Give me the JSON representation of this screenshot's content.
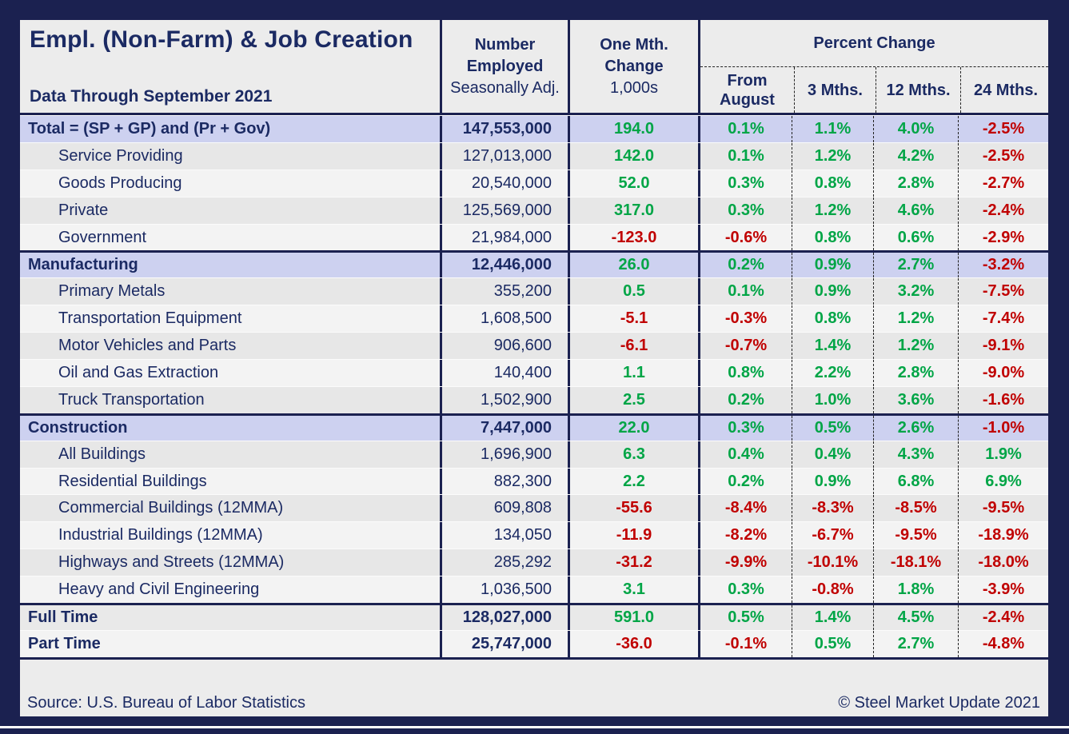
{
  "header": {
    "title": "Empl. (Non-Farm) & Job Creation",
    "subtitle": "Data Through September 2021",
    "employed_col": {
      "line1": "Number",
      "line2": "Employed",
      "line3": "Seasonally Adj."
    },
    "change_col": {
      "line1": "One Mth.",
      "line2": "Change",
      "line3": "1,000s"
    },
    "percent_change_label": "Percent Change",
    "percent_sub_columns": [
      "From August",
      "3 Mths.",
      "12 Mths.",
      "24 Mths."
    ]
  },
  "chart_data": {
    "type": "table",
    "title": "Empl. (Non-Farm) & Job Creation",
    "subtitle": "Data Through September 2021",
    "columns": [
      "Category",
      "Number Employed (Seasonally Adj.)",
      "One Mth. Change (1,000s)",
      "Percent Change From August",
      "Percent Change 3 Mths.",
      "Percent Change 12 Mths.",
      "Percent Change 24 Mths."
    ],
    "rows": [
      {
        "label": "Total = (SP + GP) and (Pr + Gov)",
        "employed": "147,553,000",
        "one_month_change": "194.0",
        "pct_from_august": "0.1%",
        "pct_3_months": "1.1%",
        "pct_12_months": "4.0%",
        "pct_24_months": "-2.5%",
        "type": "section",
        "shade": "",
        "rule_top": false
      },
      {
        "label": "Service Providing",
        "employed": "127,013,000",
        "one_month_change": "142.0",
        "pct_from_august": "0.1%",
        "pct_3_months": "1.2%",
        "pct_12_months": "4.2%",
        "pct_24_months": "-2.5%",
        "type": "sub",
        "shade": "dark",
        "rule_top": false
      },
      {
        "label": "Goods Producing",
        "employed": "20,540,000",
        "one_month_change": "52.0",
        "pct_from_august": "0.3%",
        "pct_3_months": "0.8%",
        "pct_12_months": "2.8%",
        "pct_24_months": "-2.7%",
        "type": "sub",
        "shade": "light",
        "rule_top": false
      },
      {
        "label": "Private",
        "employed": "125,569,000",
        "one_month_change": "317.0",
        "pct_from_august": "0.3%",
        "pct_3_months": "1.2%",
        "pct_12_months": "4.6%",
        "pct_24_months": "-2.4%",
        "type": "sub",
        "shade": "dark",
        "rule_top": false
      },
      {
        "label": "Government",
        "employed": "21,984,000",
        "one_month_change": "-123.0",
        "pct_from_august": "-0.6%",
        "pct_3_months": "0.8%",
        "pct_12_months": "0.6%",
        "pct_24_months": "-2.9%",
        "type": "sub",
        "shade": "light",
        "rule_top": false
      },
      {
        "label": "Manufacturing",
        "employed": "12,446,000",
        "one_month_change": "26.0",
        "pct_from_august": "0.2%",
        "pct_3_months": "0.9%",
        "pct_12_months": "2.7%",
        "pct_24_months": "-3.2%",
        "type": "section",
        "shade": "",
        "rule_top": true
      },
      {
        "label": "Primary Metals",
        "employed": "355,200",
        "one_month_change": "0.5",
        "pct_from_august": "0.1%",
        "pct_3_months": "0.9%",
        "pct_12_months": "3.2%",
        "pct_24_months": "-7.5%",
        "type": "sub",
        "shade": "dark",
        "rule_top": false
      },
      {
        "label": "Transportation Equipment",
        "employed": "1,608,500",
        "one_month_change": "-5.1",
        "pct_from_august": "-0.3%",
        "pct_3_months": "0.8%",
        "pct_12_months": "1.2%",
        "pct_24_months": "-7.4%",
        "type": "sub",
        "shade": "light",
        "rule_top": false
      },
      {
        "label": "Motor Vehicles and Parts",
        "employed": "906,600",
        "one_month_change": "-6.1",
        "pct_from_august": "-0.7%",
        "pct_3_months": "1.4%",
        "pct_12_months": "1.2%",
        "pct_24_months": "-9.1%",
        "type": "sub",
        "shade": "dark",
        "rule_top": false
      },
      {
        "label": "Oil and Gas Extraction",
        "employed": "140,400",
        "one_month_change": "1.1",
        "pct_from_august": "0.8%",
        "pct_3_months": "2.2%",
        "pct_12_months": "2.8%",
        "pct_24_months": "-9.0%",
        "type": "sub",
        "shade": "light",
        "rule_top": false
      },
      {
        "label": "Truck Transportation",
        "employed": "1,502,900",
        "one_month_change": "2.5",
        "pct_from_august": "0.2%",
        "pct_3_months": "1.0%",
        "pct_12_months": "3.6%",
        "pct_24_months": "-1.6%",
        "type": "sub",
        "shade": "dark",
        "rule_top": false
      },
      {
        "label": "Construction",
        "employed": "7,447,000",
        "one_month_change": "22.0",
        "pct_from_august": "0.3%",
        "pct_3_months": "0.5%",
        "pct_12_months": "2.6%",
        "pct_24_months": "-1.0%",
        "type": "section",
        "shade": "",
        "rule_top": true
      },
      {
        "label": "All Buildings",
        "employed": "1,696,900",
        "one_month_change": "6.3",
        "pct_from_august": "0.4%",
        "pct_3_months": "0.4%",
        "pct_12_months": "4.3%",
        "pct_24_months": "1.9%",
        "type": "sub",
        "shade": "dark",
        "rule_top": false
      },
      {
        "label": "Residential Buildings",
        "employed": "882,300",
        "one_month_change": "2.2",
        "pct_from_august": "0.2%",
        "pct_3_months": "0.9%",
        "pct_12_months": "6.8%",
        "pct_24_months": "6.9%",
        "type": "sub",
        "shade": "light",
        "rule_top": false
      },
      {
        "label": "Commercial Buildings (12MMA)",
        "employed": "609,808",
        "one_month_change": "-55.6",
        "pct_from_august": "-8.4%",
        "pct_3_months": "-8.3%",
        "pct_12_months": "-8.5%",
        "pct_24_months": "-9.5%",
        "type": "sub",
        "shade": "dark",
        "rule_top": false
      },
      {
        "label": "Industrial Buildings (12MMA)",
        "employed": "134,050",
        "one_month_change": "-11.9",
        "pct_from_august": "-8.2%",
        "pct_3_months": "-6.7%",
        "pct_12_months": "-9.5%",
        "pct_24_months": "-18.9%",
        "type": "sub",
        "shade": "light",
        "rule_top": false
      },
      {
        "label": "Highways and Streets (12MMA)",
        "employed": "285,292",
        "one_month_change": "-31.2",
        "pct_from_august": "-9.9%",
        "pct_3_months": "-10.1%",
        "pct_12_months": "-18.1%",
        "pct_24_months": "-18.0%",
        "type": "sub",
        "shade": "dark",
        "rule_top": false
      },
      {
        "label": "Heavy and Civil Engineering",
        "employed": "1,036,500",
        "one_month_change": "3.1",
        "pct_from_august": "0.3%",
        "pct_3_months": "-0.8%",
        "pct_12_months": "1.8%",
        "pct_24_months": "-3.9%",
        "type": "sub",
        "shade": "light",
        "rule_top": false
      },
      {
        "label": "Full Time",
        "employed": "128,027,000",
        "one_month_change": "591.0",
        "pct_from_august": "0.5%",
        "pct_3_months": "1.4%",
        "pct_12_months": "4.5%",
        "pct_24_months": "-2.4%",
        "type": "summary",
        "shade": "dark",
        "rule_top": true
      },
      {
        "label": "Part Time",
        "employed": "25,747,000",
        "one_month_change": "-36.0",
        "pct_from_august": "-0.1%",
        "pct_3_months": "0.5%",
        "pct_12_months": "2.7%",
        "pct_24_months": "-4.8%",
        "type": "summary",
        "shade": "light",
        "rule_top": false
      }
    ]
  },
  "footer": {
    "source": "Source: U.S. Bureau of Labor Statistics",
    "copyright": "© Steel Market Update 2021"
  },
  "colors": {
    "background_navy": "#1b2150",
    "table_background": "#ececec",
    "section_row_lavender": "#cdd1f0",
    "row_gray_dark": "#e7e7e7",
    "row_gray_light": "#f3f3f3",
    "text_navy": "#1b2a63",
    "positive_green": "#00a546",
    "negative_red": "#c00000"
  }
}
